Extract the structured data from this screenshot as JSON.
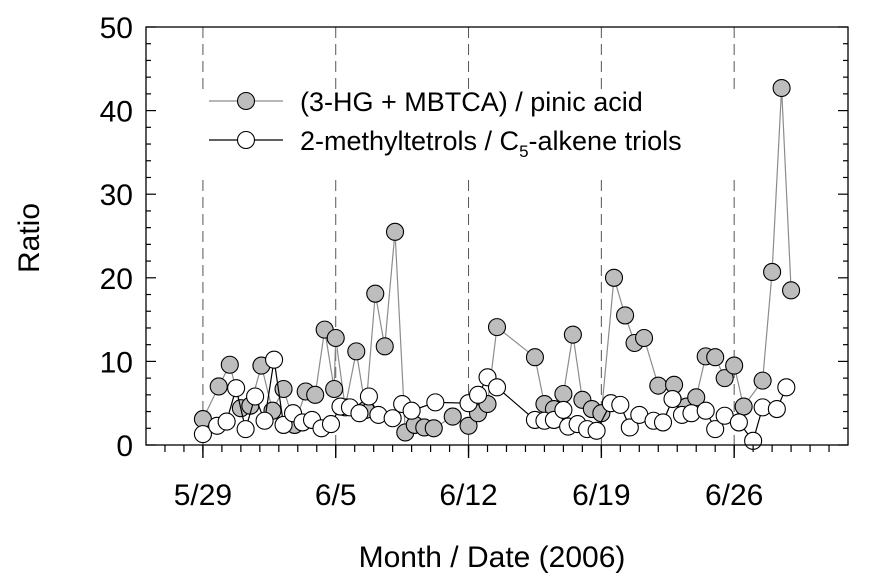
{
  "chart_data": {
    "type": "line",
    "xlabel": "Month / Date (2006)",
    "ylabel": "Ratio",
    "ylim": [
      0,
      50
    ],
    "yticks": [
      0,
      10,
      20,
      30,
      40,
      50
    ],
    "xlim": [
      "2006-05-26",
      "2006-07-02"
    ],
    "xticks": [
      {
        "date": "2006-05-29",
        "label": "5/29"
      },
      {
        "date": "2006-06-05",
        "label": "6/5"
      },
      {
        "date": "2006-06-12",
        "label": "6/12"
      },
      {
        "date": "2006-06-19",
        "label": "6/19"
      },
      {
        "date": "2006-06-26",
        "label": "6/26"
      }
    ],
    "weekly_dashed_lines": [
      "2006-05-29",
      "2006-06-05",
      "2006-06-12",
      "2006-06-19",
      "2006-06-26"
    ],
    "grid": false,
    "legend_position": "top-right",
    "series": [
      {
        "name": "(3-HG + MBTCA) / pinic acid",
        "name_prefix": "(3-HG + MBTCA) / pinic acid",
        "name_sub": "",
        "name_suffix": "",
        "marker": "filled-circle",
        "fill": "#bdbdbd",
        "line_color": "#8c8c8c",
        "points": [
          [
            "2006-05-29 00:00",
            3.1
          ],
          [
            "2006-05-29 20:00",
            7.0
          ],
          [
            "2006-05-30 10:00",
            9.6
          ],
          [
            "2006-05-31 00:00",
            4.4
          ],
          [
            "2006-05-31 12:00",
            4.7
          ],
          [
            "2006-06-01 02:00",
            9.5
          ],
          [
            "2006-06-01 16:00",
            4.1
          ],
          [
            "2006-06-02 06:00",
            6.7
          ],
          [
            "2006-06-02 20:00",
            2.4
          ],
          [
            "2006-06-03 10:00",
            6.4
          ],
          [
            "2006-06-03 22:00",
            6.0
          ],
          [
            "2006-06-04 10:00",
            13.8
          ],
          [
            "2006-06-04 22:00",
            6.7
          ],
          [
            "2006-06-05 00:00",
            12.8
          ],
          [
            "2006-06-05 12:00",
            4.5
          ],
          [
            "2006-06-06 02:00",
            11.2
          ],
          [
            "2006-06-06 14:00",
            4.2
          ],
          [
            "2006-06-07 02:00",
            18.1
          ],
          [
            "2006-06-07 14:00",
            11.8
          ],
          [
            "2006-06-08 03:00",
            25.5
          ],
          [
            "2006-06-08 16:00",
            1.5
          ],
          [
            "2006-06-09 04:00",
            2.4
          ],
          [
            "2006-06-09 16:00",
            2.1
          ],
          [
            "2006-06-10 04:00",
            2.0
          ],
          [
            "2006-06-11 04:00",
            3.4
          ],
          [
            "2006-06-12 00:00",
            2.3
          ],
          [
            "2006-06-12 12:00",
            3.8
          ],
          [
            "2006-06-13 00:00",
            4.9
          ],
          [
            "2006-06-13 12:00",
            14.1
          ],
          [
            "2006-06-15 12:00",
            10.5
          ],
          [
            "2006-06-16 00:00",
            4.9
          ],
          [
            "2006-06-16 12:00",
            4.3
          ],
          [
            "2006-06-17 00:00",
            6.1
          ],
          [
            "2006-06-17 12:00",
            13.2
          ],
          [
            "2006-06-18 00:00",
            5.4
          ],
          [
            "2006-06-18 12:00",
            4.3
          ],
          [
            "2006-06-19 00:00",
            3.8
          ],
          [
            "2006-06-19 16:00",
            20.0
          ],
          [
            "2006-06-20 06:00",
            15.5
          ],
          [
            "2006-06-20 18:00",
            12.2
          ],
          [
            "2006-06-21 06:00",
            12.8
          ],
          [
            "2006-06-22 00:00",
            7.1
          ],
          [
            "2006-06-22 20:00",
            7.2
          ],
          [
            "2006-06-23 12:00",
            4.6
          ],
          [
            "2006-06-24 00:00",
            5.7
          ],
          [
            "2006-06-24 12:00",
            10.6
          ],
          [
            "2006-06-25 00:00",
            10.5
          ],
          [
            "2006-06-25 12:00",
            8.0
          ],
          [
            "2006-06-26 00:00",
            9.5
          ],
          [
            "2006-06-26 12:00",
            4.6
          ],
          [
            "2006-06-27 12:00",
            7.7
          ],
          [
            "2006-06-28 00:00",
            20.7
          ],
          [
            "2006-06-28 12:00",
            42.7
          ],
          [
            "2006-06-29 00:00",
            18.5
          ]
        ]
      },
      {
        "name": "2-methyltetrols / C5-alkene triols",
        "name_prefix": "2-methyltetrols / C",
        "name_sub": "5",
        "name_suffix": "-alkene triols",
        "marker": "open-circle",
        "fill": "#ffffff",
        "line_color": "#000000",
        "points": [
          [
            "2006-05-29 00:00",
            1.3
          ],
          [
            "2006-05-29 18:00",
            2.3
          ],
          [
            "2006-05-30 06:00",
            2.8
          ],
          [
            "2006-05-30 18:00",
            6.8
          ],
          [
            "2006-05-31 06:00",
            1.9
          ],
          [
            "2006-05-31 18:00",
            5.8
          ],
          [
            "2006-06-01 06:00",
            2.9
          ],
          [
            "2006-06-01 18:00",
            10.2
          ],
          [
            "2006-06-02 06:00",
            2.4
          ],
          [
            "2006-06-02 18:00",
            3.8
          ],
          [
            "2006-06-03 06:00",
            2.7
          ],
          [
            "2006-06-03 18:00",
            3.0
          ],
          [
            "2006-06-04 06:00",
            2.0
          ],
          [
            "2006-06-04 18:00",
            2.5
          ],
          [
            "2006-06-05 06:00",
            4.6
          ],
          [
            "2006-06-05 18:00",
            4.5
          ],
          [
            "2006-06-06 06:00",
            3.8
          ],
          [
            "2006-06-06 18:00",
            5.8
          ],
          [
            "2006-06-07 06:00",
            3.6
          ],
          [
            "2006-06-08 00:00",
            3.2
          ],
          [
            "2006-06-08 12:00",
            4.9
          ],
          [
            "2006-06-09 00:00",
            4.1
          ],
          [
            "2006-06-10 06:00",
            5.1
          ],
          [
            "2006-06-12 00:00",
            5.0
          ],
          [
            "2006-06-12 12:00",
            6.0
          ],
          [
            "2006-06-13 00:00",
            8.1
          ],
          [
            "2006-06-13 12:00",
            6.9
          ],
          [
            "2006-06-15 12:00",
            3.0
          ],
          [
            "2006-06-16 00:00",
            2.9
          ],
          [
            "2006-06-16 12:00",
            3.0
          ],
          [
            "2006-06-17 00:00",
            4.2
          ],
          [
            "2006-06-17 06:00",
            2.2
          ],
          [
            "2006-06-17 18:00",
            2.5
          ],
          [
            "2006-06-18 06:00",
            1.9
          ],
          [
            "2006-06-18 18:00",
            1.7
          ],
          [
            "2006-06-19 12:00",
            5.0
          ],
          [
            "2006-06-20 00:00",
            4.8
          ],
          [
            "2006-06-20 12:00",
            2.1
          ],
          [
            "2006-06-21 00:00",
            3.6
          ],
          [
            "2006-06-21 18:00",
            2.9
          ],
          [
            "2006-06-22 06:00",
            2.7
          ],
          [
            "2006-06-22 18:00",
            5.5
          ],
          [
            "2006-06-23 06:00",
            3.6
          ],
          [
            "2006-06-23 18:00",
            3.8
          ],
          [
            "2006-06-24 12:00",
            4.1
          ],
          [
            "2006-06-25 00:00",
            1.9
          ],
          [
            "2006-06-25 12:00",
            3.5
          ],
          [
            "2006-06-26 06:00",
            2.7
          ],
          [
            "2006-06-27 00:00",
            0.5
          ],
          [
            "2006-06-27 12:00",
            4.5
          ],
          [
            "2006-06-28 06:00",
            4.3
          ],
          [
            "2006-06-28 18:00",
            6.9
          ]
        ]
      }
    ]
  }
}
